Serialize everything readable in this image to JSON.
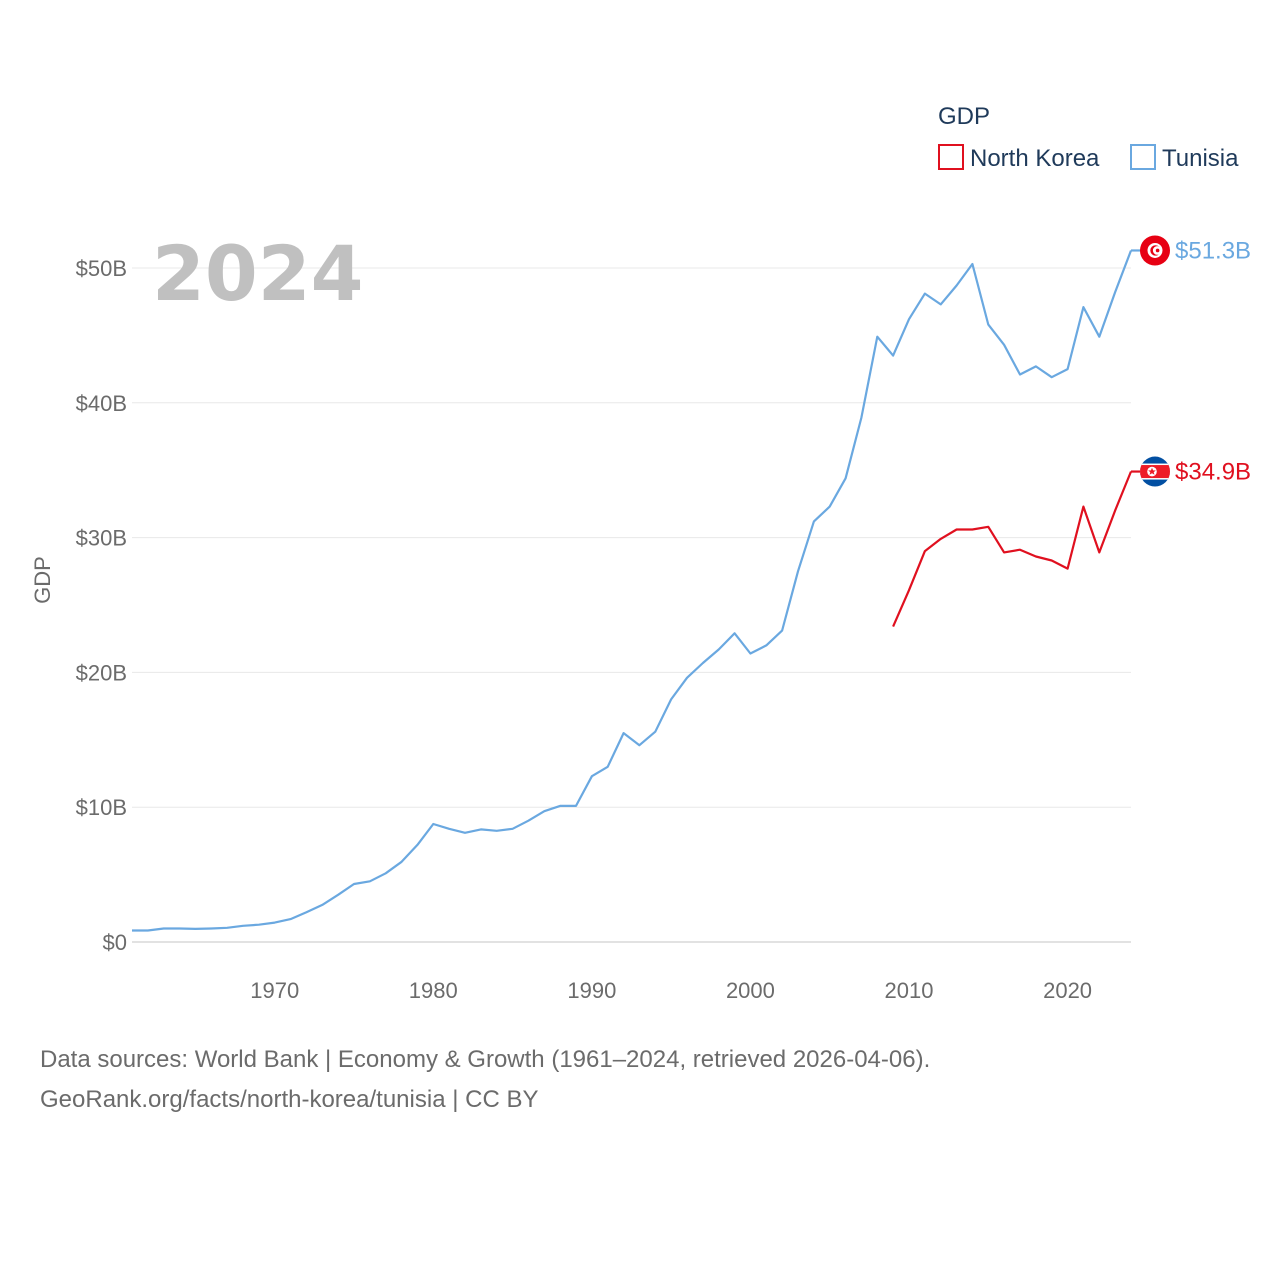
{
  "chart_data": {
    "type": "line",
    "title": "",
    "year_label": "2024",
    "xlabel": "",
    "ylabel": "GDP",
    "xlim": [
      1961,
      2024
    ],
    "ylim": [
      0,
      50
    ],
    "x_ticks": [
      1970,
      1980,
      1990,
      2000,
      2010,
      2020
    ],
    "x_tick_labels": [
      "1970",
      "1980",
      "1990",
      "2000",
      "2010",
      "2020"
    ],
    "y_ticks": [
      0,
      10,
      20,
      30,
      40,
      50
    ],
    "y_tick_labels": [
      "$0",
      "$10B",
      "$20B",
      "$30B",
      "$40B",
      "$50B"
    ],
    "legend_title": "GDP",
    "legend_placement": "top-right",
    "grid": true,
    "series": [
      {
        "name": "North Korea",
        "color": "#e0101f",
        "end_label": "$34.9B",
        "flag": "north-korea-flag-icon",
        "x": [
          2009,
          2010,
          2011,
          2012,
          2013,
          2014,
          2015,
          2016,
          2017,
          2018,
          2019,
          2020,
          2021,
          2022,
          2023,
          2024
        ],
        "values": [
          23.4,
          26.1,
          29.0,
          29.9,
          30.6,
          30.6,
          30.8,
          28.9,
          29.1,
          28.6,
          28.3,
          27.7,
          32.3,
          28.9,
          32.0,
          34.9
        ]
      },
      {
        "name": "Tunisia",
        "color": "#6aa8e0",
        "end_label": "$51.3B",
        "flag": "tunisia-flag-icon",
        "x": [
          1961,
          1962,
          1963,
          1964,
          1965,
          1966,
          1967,
          1968,
          1969,
          1970,
          1971,
          1972,
          1973,
          1974,
          1975,
          1976,
          1977,
          1978,
          1979,
          1980,
          1981,
          1982,
          1983,
          1984,
          1985,
          1986,
          1987,
          1988,
          1989,
          1990,
          1991,
          1992,
          1993,
          1994,
          1995,
          1996,
          1997,
          1998,
          1999,
          2000,
          2001,
          2002,
          2003,
          2004,
          2005,
          2006,
          2007,
          2008,
          2009,
          2010,
          2011,
          2012,
          2013,
          2014,
          2015,
          2016,
          2017,
          2018,
          2019,
          2020,
          2021,
          2022,
          2023,
          2024
        ],
        "values": [
          0.85,
          0.85,
          1.0,
          1.0,
          0.97,
          1.0,
          1.05,
          1.2,
          1.28,
          1.44,
          1.7,
          2.2,
          2.75,
          3.5,
          4.3,
          4.5,
          5.1,
          5.95,
          7.2,
          8.75,
          8.4,
          8.1,
          8.35,
          8.25,
          8.4,
          9.0,
          9.7,
          10.1,
          10.1,
          12.3,
          13.0,
          15.5,
          14.6,
          15.6,
          18.0,
          19.6,
          20.7,
          21.7,
          22.9,
          21.4,
          22.0,
          23.1,
          27.5,
          31.2,
          32.3,
          34.4,
          38.9,
          44.9,
          43.5,
          46.2,
          48.1,
          47.3,
          48.7,
          50.3,
          45.8,
          44.3,
          42.1,
          42.7,
          41.9,
          42.5,
          47.1,
          44.9,
          48.2,
          51.3
        ]
      }
    ]
  },
  "footer": {
    "line1": "Data sources: World Bank | Economy & Growth (1961–2024, retrieved 2026-04-06).",
    "line2": "GeoRank.org/facts/north-korea/tunisia | CC BY"
  }
}
